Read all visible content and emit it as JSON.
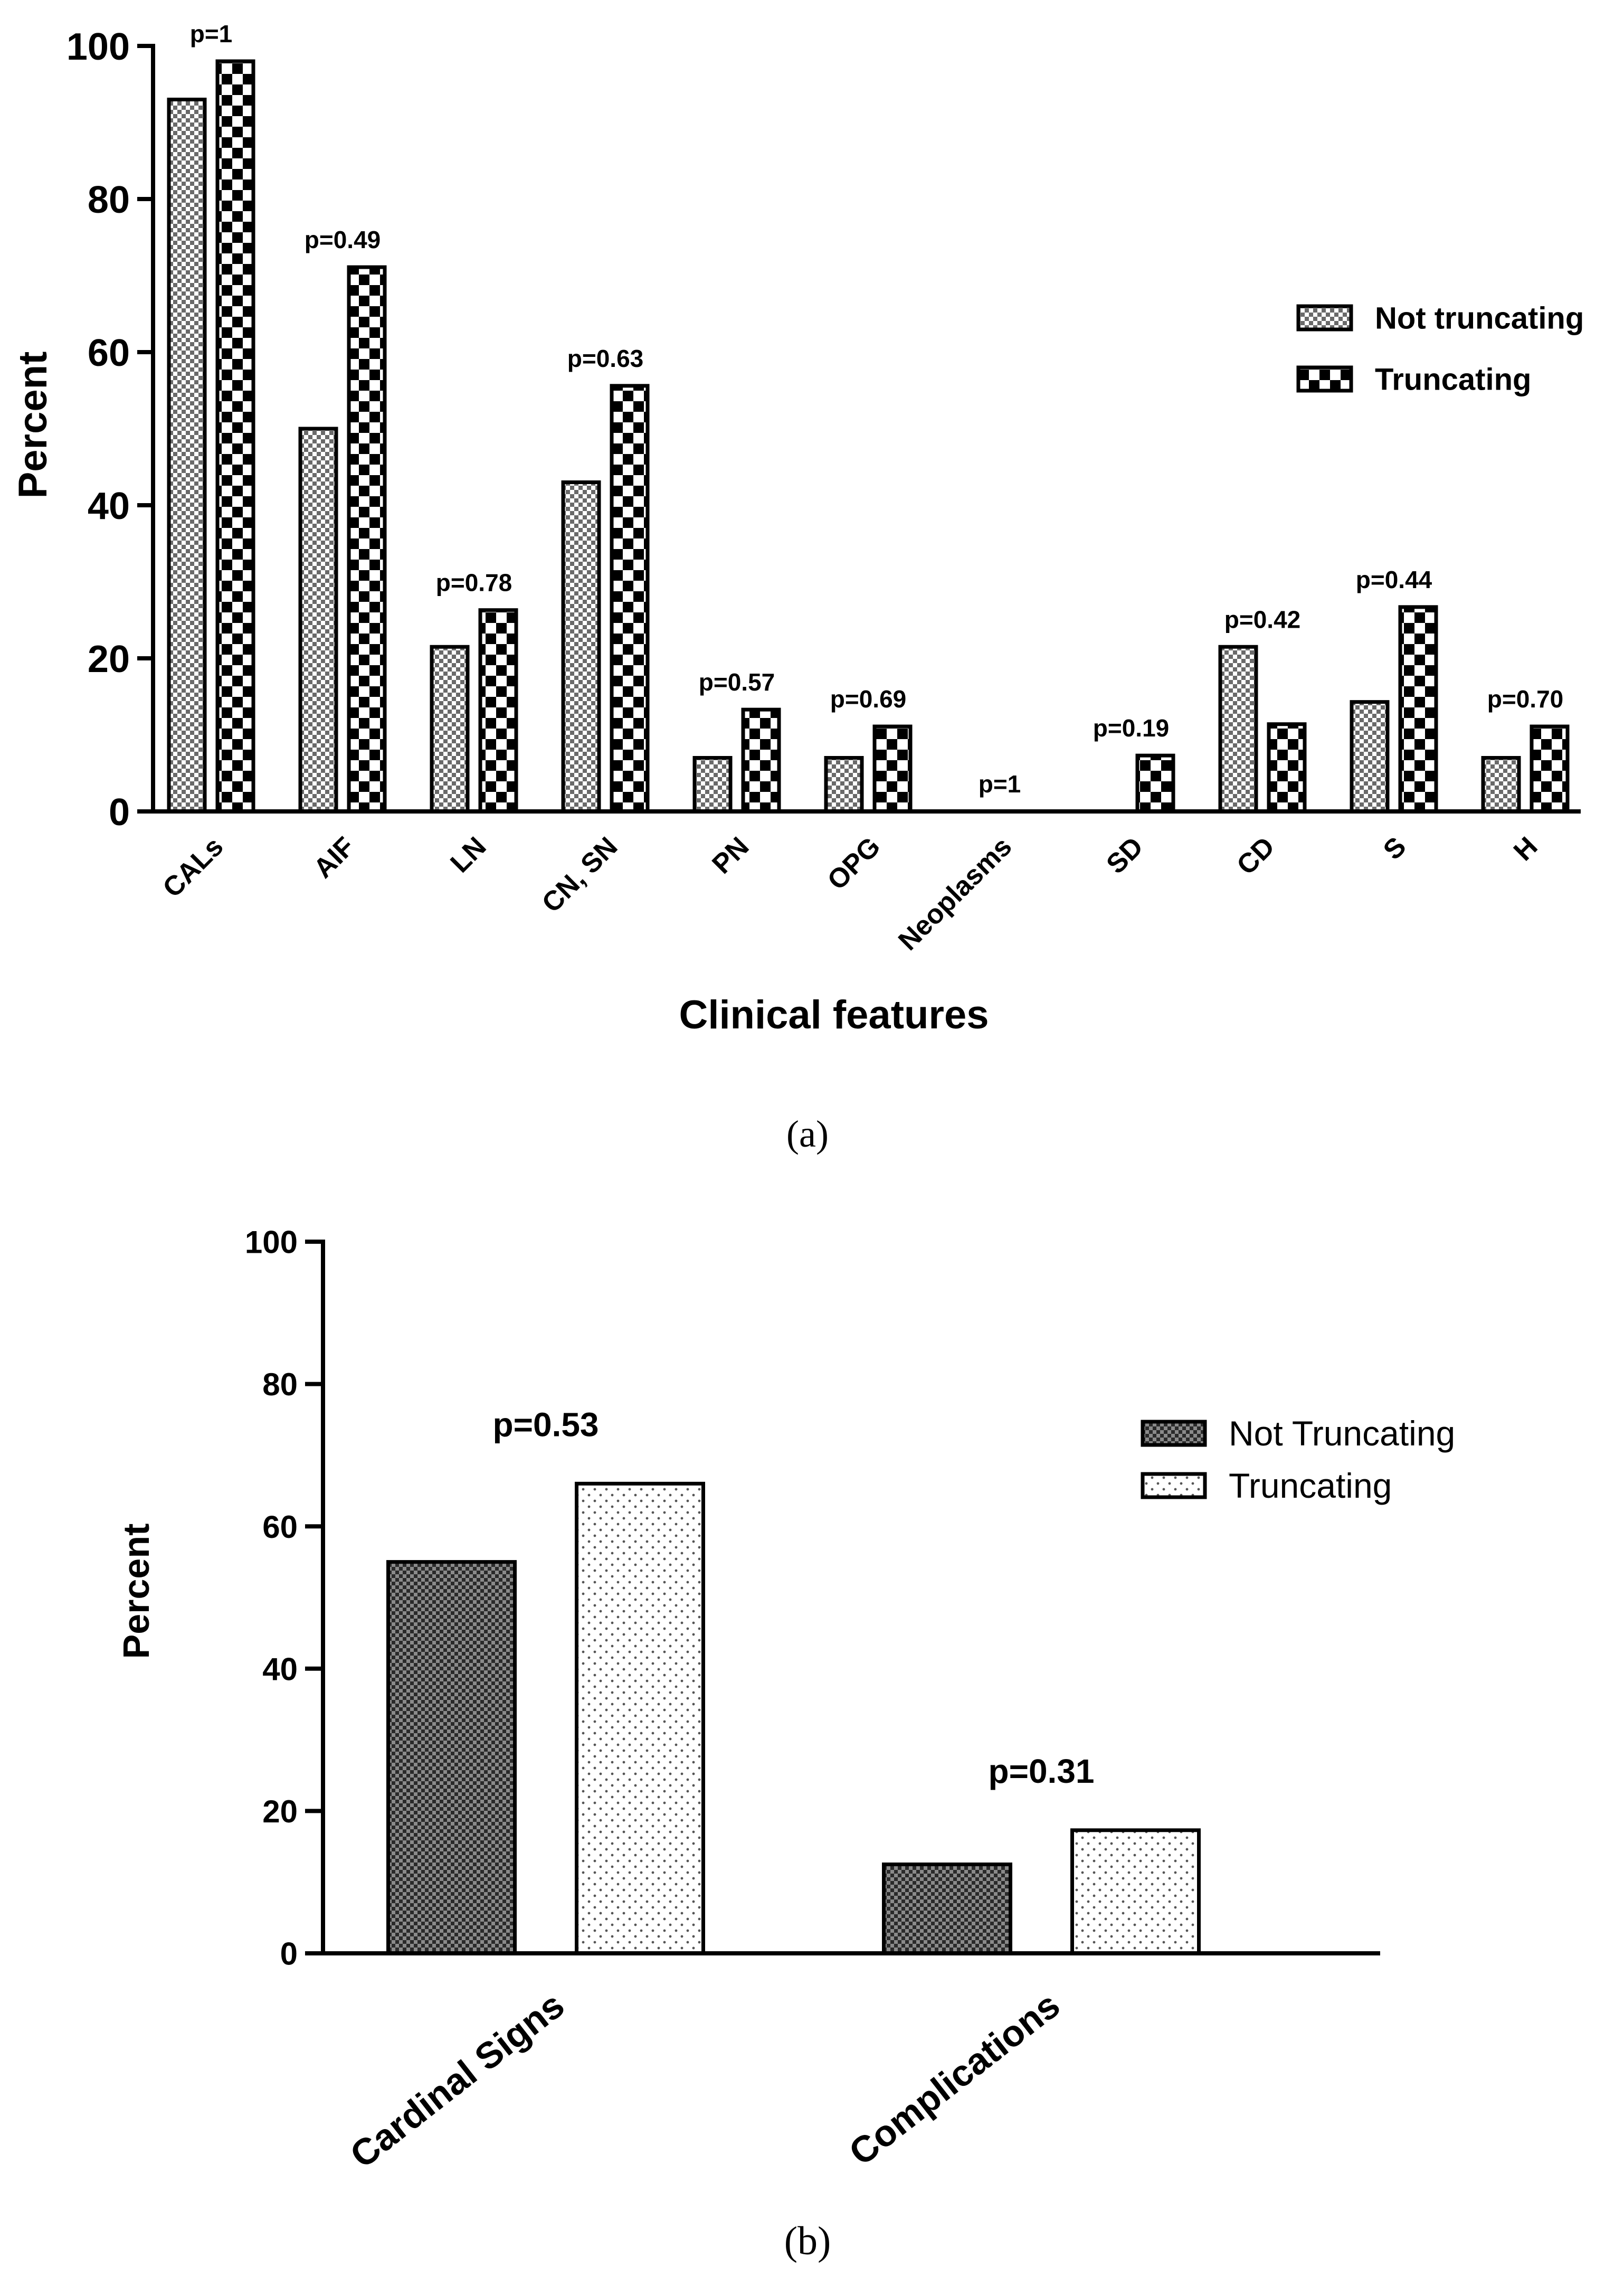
{
  "chart_data": [
    {
      "type": "bar",
      "caption": "(a)",
      "title": "",
      "xlabel": "Clinical features",
      "ylabel": "Percent",
      "ylim": [
        0,
        100
      ],
      "yticks": [
        "0",
        "20",
        "40",
        "60",
        "80",
        "100"
      ],
      "categories": [
        "CALs",
        "AIF",
        "LN",
        "CN, SN",
        "PN",
        "OPG",
        "Neoplasms",
        "SD",
        "CD",
        "S",
        "H"
      ],
      "series": [
        {
          "name": "Not truncating",
          "values": [
            93,
            50,
            21.5,
            43,
            7,
            7,
            0,
            0,
            21.5,
            14.3,
            7
          ]
        },
        {
          "name": "Truncating",
          "values": [
            98,
            71.1,
            26.3,
            55.6,
            13.3,
            11.1,
            0,
            7.3,
            11.4,
            26.7,
            11.1
          ]
        }
      ],
      "annotations": [
        "p=1",
        "p=0.49",
        "p=0.78",
        "p=0.63",
        "p=0.57",
        "p=0.69",
        "p=1",
        "p=0.19",
        "p=0.42",
        "p=0.44",
        "p=0.70"
      ],
      "legend_position": "right"
    },
    {
      "type": "bar",
      "caption": "(b)",
      "title": "",
      "xlabel": "",
      "ylabel": "Percent",
      "ylim": [
        0,
        100
      ],
      "yticks": [
        "0",
        "20",
        "40",
        "60",
        "80",
        "100"
      ],
      "categories": [
        "Cardinal Signs",
        "Complications"
      ],
      "series": [
        {
          "name": "Not Truncating",
          "values": [
            55,
            12.5
          ]
        },
        {
          "name": "Truncating",
          "values": [
            66,
            17.3
          ]
        }
      ],
      "annotations": [
        "p=0.53",
        "p=0.31"
      ],
      "legend_position": "top-right"
    }
  ]
}
